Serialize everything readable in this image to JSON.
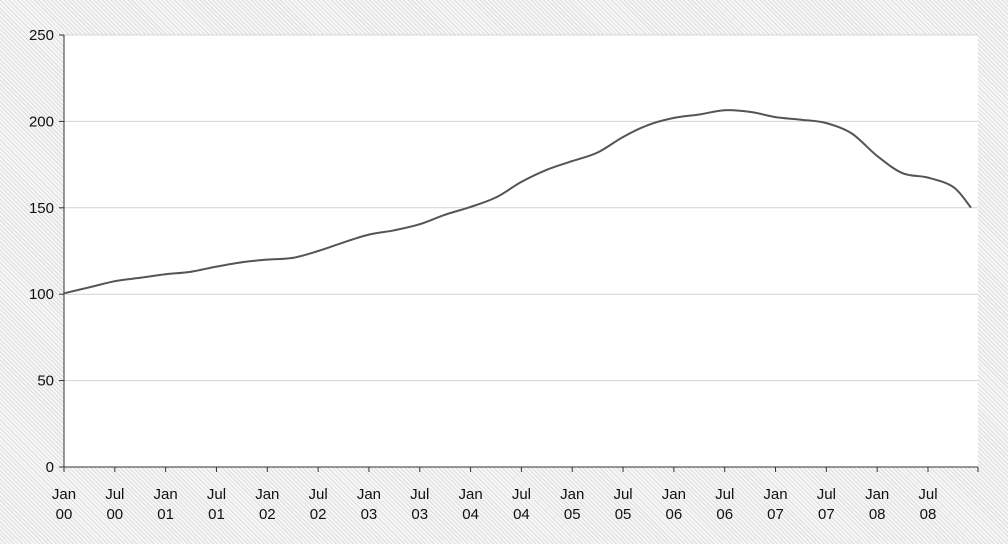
{
  "chart_data": {
    "type": "line",
    "title": "",
    "xlabel": "",
    "ylabel": "",
    "ylim": [
      0,
      250
    ],
    "yticks": [
      0,
      50,
      100,
      150,
      200,
      250
    ],
    "grid": true,
    "legend": "none",
    "x_tick_labels": [
      {
        "line1": "Jan",
        "line2": "00",
        "date": "2000-01"
      },
      {
        "line1": "Jul",
        "line2": "00",
        "date": "2000-07"
      },
      {
        "line1": "Jan",
        "line2": "01",
        "date": "2001-01"
      },
      {
        "line1": "Jul",
        "line2": "01",
        "date": "2001-07"
      },
      {
        "line1": "Jan",
        "line2": "02",
        "date": "2002-01"
      },
      {
        "line1": "Jul",
        "line2": "02",
        "date": "2002-07"
      },
      {
        "line1": "Jan",
        "line2": "03",
        "date": "2003-01"
      },
      {
        "line1": "Jul",
        "line2": "03",
        "date": "2003-07"
      },
      {
        "line1": "Jan",
        "line2": "04",
        "date": "2004-01"
      },
      {
        "line1": "Jul",
        "line2": "04",
        "date": "2004-07"
      },
      {
        "line1": "Jan",
        "line2": "05",
        "date": "2005-01"
      },
      {
        "line1": "Jul",
        "line2": "05",
        "date": "2005-07"
      },
      {
        "line1": "Jan",
        "line2": "06",
        "date": "2006-01"
      },
      {
        "line1": "Jul",
        "line2": "06",
        "date": "2006-07"
      },
      {
        "line1": "Jan",
        "line2": "07",
        "date": "2007-01"
      },
      {
        "line1": "Jul",
        "line2": "07",
        "date": "2007-07"
      },
      {
        "line1": "Jan",
        "line2": "08",
        "date": "2008-01"
      },
      {
        "line1": "Jul",
        "line2": "08",
        "date": "2008-07"
      }
    ],
    "series": [
      {
        "color": "#555555",
        "points": [
          {
            "x": "2000-01",
            "y": 100.5
          },
          {
            "x": "2000-04",
            "y": 104
          },
          {
            "x": "2000-07",
            "y": 107.5
          },
          {
            "x": "2000-10",
            "y": 109.5
          },
          {
            "x": "2001-01",
            "y": 111.5
          },
          {
            "x": "2001-04",
            "y": 113
          },
          {
            "x": "2001-07",
            "y": 116
          },
          {
            "x": "2001-10",
            "y": 118.5
          },
          {
            "x": "2002-01",
            "y": 120
          },
          {
            "x": "2002-04",
            "y": 121
          },
          {
            "x": "2002-07",
            "y": 125
          },
          {
            "x": "2002-10",
            "y": 130
          },
          {
            "x": "2003-01",
            "y": 134.5
          },
          {
            "x": "2003-04",
            "y": 137
          },
          {
            "x": "2003-07",
            "y": 140.5
          },
          {
            "x": "2003-10",
            "y": 146
          },
          {
            "x": "2004-01",
            "y": 150.5
          },
          {
            "x": "2004-04",
            "y": 156
          },
          {
            "x": "2004-07",
            "y": 165
          },
          {
            "x": "2004-10",
            "y": 172
          },
          {
            "x": "2005-01",
            "y": 177
          },
          {
            "x": "2005-04",
            "y": 182
          },
          {
            "x": "2005-07",
            "y": 191
          },
          {
            "x": "2005-10",
            "y": 198
          },
          {
            "x": "2006-01",
            "y": 202
          },
          {
            "x": "2006-04",
            "y": 204
          },
          {
            "x": "2006-07",
            "y": 206.5
          },
          {
            "x": "2006-10",
            "y": 205.5
          },
          {
            "x": "2007-01",
            "y": 202.5
          },
          {
            "x": "2007-04",
            "y": 201
          },
          {
            "x": "2007-07",
            "y": 199
          },
          {
            "x": "2007-10",
            "y": 193
          },
          {
            "x": "2008-01",
            "y": 180
          },
          {
            "x": "2008-04",
            "y": 170
          },
          {
            "x": "2008-07",
            "y": 167.5
          },
          {
            "x": "2008-10",
            "y": 162
          },
          {
            "x": "2008-12",
            "y": 150.5
          }
        ]
      }
    ]
  }
}
